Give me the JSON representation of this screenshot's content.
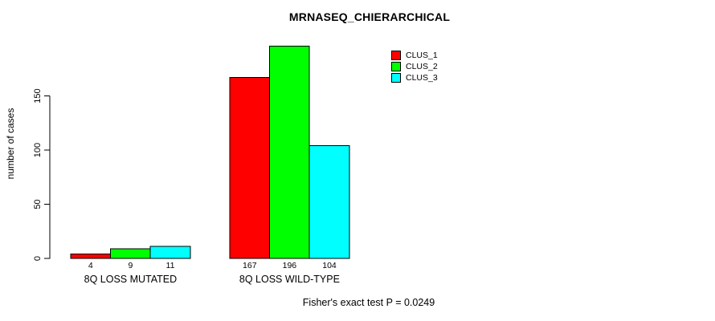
{
  "chart_data": {
    "type": "bar",
    "title": "MRNASEQ_CHIERARCHICAL",
    "ylabel": "number of cases",
    "xlabel": "",
    "categories": [
      "8Q LOSS MUTATED",
      "8Q LOSS WILD-TYPE"
    ],
    "series": [
      {
        "name": "CLUS_1",
        "color": "#ff0000",
        "values": [
          4,
          167
        ]
      },
      {
        "name": "CLUS_2",
        "color": "#00ff00",
        "values": [
          9,
          196
        ]
      },
      {
        "name": "CLUS_3",
        "color": "#00ffff",
        "values": [
          11,
          104
        ]
      }
    ],
    "yticks": [
      0,
      50,
      100,
      150
    ],
    "ylim": [
      0,
      200
    ],
    "grid": false,
    "legend_position": "top-right",
    "bar_border_color": "#000000",
    "axis_color": "#000000",
    "annotation": "Fisher's exact test P = 0.0249"
  }
}
